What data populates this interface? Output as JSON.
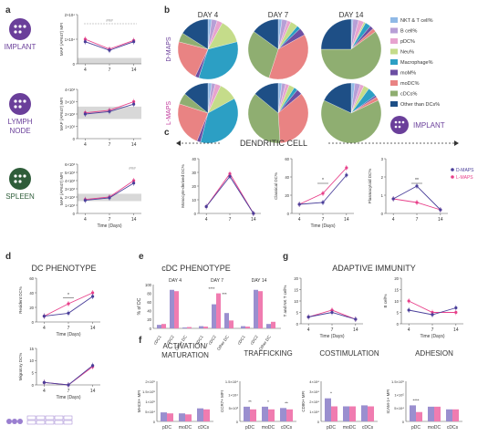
{
  "panels": {
    "a": "a",
    "b": "b",
    "c": "c",
    "d": "d",
    "e": "e",
    "f": "f",
    "g": "g"
  },
  "a": {
    "rows": [
      {
        "label_lines": [
          "IMPLANT"
        ],
        "ylabel": "MAP (AF647) MFI",
        "ticks": [
          "2×10⁴",
          "1×10⁴",
          "0"
        ],
        "color": "#5a3a8a"
      },
      {
        "label_lines": [
          "LYMPH",
          "NODE"
        ],
        "ylabel": "MAP (AF647) MFI",
        "ticks": [
          "4×10³",
          "3×10³",
          "2×10³",
          "1×10³",
          "0"
        ],
        "color": "#5a3a8a"
      },
      {
        "label_lines": [
          "SPLEEN"
        ],
        "ylabel": "MAP (AF647) MFI",
        "ticks": [
          "6×10³",
          "5×10³",
          "4×10³",
          "3×10³",
          "2×10³",
          "1×10³",
          "0"
        ],
        "color": "#1f4a2e"
      }
    ],
    "xticks": [
      "4",
      "7",
      "14"
    ],
    "xlabel": "Time (Days)",
    "sig": "###"
  },
  "b": {
    "days": [
      "DAY 4",
      "DAY 7",
      "DAY 14"
    ],
    "rows": [
      "D-MAPS",
      "L-MAPS"
    ],
    "legend": [
      {
        "label": "NKT & T cell%",
        "color": "#8fb9e6"
      },
      {
        "label": "B cell%",
        "color": "#b79fd6"
      },
      {
        "label": "pDC%",
        "color": "#e7a3cf"
      },
      {
        "label": "Neu%",
        "color": "#c5dc8a"
      },
      {
        "label": "Macrophage%",
        "color": "#2c9fc4"
      },
      {
        "label": "moM%",
        "color": "#6c4fa3"
      },
      {
        "label": "moDC%",
        "color": "#e98383"
      },
      {
        "label": "cDCs%",
        "color": "#8fae71"
      },
      {
        "label": "Other than DCs%",
        "color": "#1e4f86"
      }
    ],
    "pies": [
      [
        [
          2,
          3,
          3,
          13,
          34,
          2,
          22,
          5,
          16
        ],
        [
          2,
          3,
          2,
          4,
          2,
          4,
          38,
          30,
          15
        ],
        [
          1,
          3,
          3,
          1,
          3,
          2,
          2,
          60,
          25
        ]
      ],
      [
        [
          2,
          2,
          3,
          10,
          37,
          2,
          24,
          6,
          14
        ],
        [
          2,
          2,
          2,
          3,
          2,
          3,
          35,
          37,
          14
        ],
        [
          2,
          3,
          2,
          3,
          5,
          1,
          2,
          64,
          18
        ]
      ]
    ],
    "implant_label": "IMPLANT"
  },
  "c": {
    "title": "DENDRITIC CELL",
    "subplots": [
      {
        "ylabel": "Monocyte-derived DC%",
        "ticks": [
          "40",
          "30",
          "20",
          "10",
          "0"
        ],
        "ymax": 40,
        "xlabel": "",
        "sig": "",
        "dmaps": [
          5,
          27,
          0
        ],
        "lmaps": [
          5,
          29,
          0
        ]
      },
      {
        "ylabel": "Classical DC%",
        "ticks": [
          "60",
          "40",
          "20",
          "0"
        ],
        "ymax": 60,
        "xlabel": "Time (Days)",
        "sig": "*",
        "dmaps": [
          10,
          12,
          42
        ],
        "lmaps": [
          10,
          22,
          50
        ]
      },
      {
        "ylabel": "Plasmacytoid DC%",
        "ticks": [
          "3",
          "2",
          "1",
          "0"
        ],
        "ymax": 3,
        "xlabel": "",
        "sig": "**",
        "dmaps": [
          0.8,
          1.5,
          0.2
        ],
        "lmaps": [
          0.8,
          0.6,
          0.2
        ]
      }
    ],
    "legend": [
      "D-MAPS",
      "L-MAPS"
    ]
  },
  "d": {
    "title": "DC PHENOTYPE",
    "top": {
      "ylabel": "Resident DC%",
      "ticks": [
        "60",
        "40",
        "20",
        "0"
      ],
      "ymax": 60,
      "sig": "*",
      "xlabel": "Time (Days)",
      "dmaps": [
        8,
        12,
        35
      ],
      "lmaps": [
        8,
        25,
        40
      ]
    },
    "bottom": {
      "ylabel": "Migratory DC%",
      "ticks": [
        "15",
        "10",
        "5",
        "0"
      ],
      "ymax": 15,
      "xlabel": "Time (Days)",
      "dmaps": [
        1,
        0,
        8
      ],
      "lmaps": [
        1,
        0,
        7.5
      ]
    },
    "xticks": [
      "4",
      "7",
      "14"
    ]
  },
  "e": {
    "title": "cDC PHENOTYPE",
    "ylabel": "% of DC",
    "ticks": [
      "100",
      "80",
      "60",
      "40",
      "20",
      "0"
    ],
    "days": [
      "DAY 4",
      "DAY 7",
      "DAY 14"
    ],
    "cats": [
      "cDC1",
      "cDC2",
      "Other DC"
    ],
    "sig": [
      "****",
      "***"
    ],
    "dmaps": [
      [
        8,
        88,
        2
      ],
      [
        5,
        55,
        35
      ],
      [
        5,
        88,
        10
      ]
    ],
    "lmaps": [
      [
        10,
        85,
        3
      ],
      [
        4,
        80,
        18
      ],
      [
        4,
        85,
        15
      ]
    ]
  },
  "f": {
    "groups": [
      {
        "title_lines": [
          "ACTIVATION/",
          "MATURATION"
        ],
        "ylabel": "MHCII+ MFI",
        "ticks": [
          "2×10⁵",
          "1.5×10⁵",
          "1×10⁵",
          "5×10⁴",
          "0"
        ],
        "ymax": 2,
        "dmaps": [
          0.45,
          0.4,
          0.65
        ],
        "lmaps": [
          0.4,
          0.35,
          0.6
        ],
        "sig": [
          "",
          "",
          ""
        ]
      },
      {
        "title_lines": [
          "TRAFFICKING"
        ],
        "ylabel": "CCR7+ MFI",
        "ticks": [
          "1.5×10⁴",
          "1×10⁴",
          "5×10³",
          "0"
        ],
        "ymax": 1.5,
        "dmaps": [
          0.55,
          0.55,
          0.5
        ],
        "lmaps": [
          0.45,
          0.45,
          0.45
        ],
        "sig": [
          "**",
          "*",
          "**"
        ]
      },
      {
        "title_lines": [
          "COSTIMULATION"
        ],
        "ylabel": "CD80+ MFI",
        "ticks": [
          "4×10⁴",
          "3×10⁴",
          "2×10⁴",
          "1×10⁴",
          "0"
        ],
        "ymax": 4,
        "dmaps": [
          2.3,
          1.5,
          1.6
        ],
        "lmaps": [
          1.5,
          1.5,
          1.5
        ],
        "sig": [
          "*",
          "",
          ""
        ]
      },
      {
        "title_lines": [
          "ADHESION"
        ],
        "ylabel": "ICAM-1+ MFI",
        "ticks": [
          "1.5×10⁵",
          "1×10⁵",
          "5×10⁴",
          "0"
        ],
        "ymax": 1.5,
        "dmaps": [
          0.6,
          0.55,
          0.45
        ],
        "lmaps": [
          0.35,
          0.55,
          0.45
        ],
        "sig": [
          "****",
          "",
          ""
        ]
      }
    ],
    "cats": [
      "pDC",
      "moDC",
      "cDCs"
    ]
  },
  "g": {
    "title": "ADAPTIVE IMMUNITY",
    "left": {
      "ylabel": "T and NK T cell%",
      "ticks": [
        "20",
        "15",
        "10",
        "5",
        "0"
      ],
      "ymax": 20,
      "xlabel": "Time (Days)",
      "dmaps": [
        3,
        5,
        2
      ],
      "lmaps": [
        3,
        6,
        2
      ]
    },
    "right": {
      "ylabel": "B cell%",
      "ticks": [
        "20",
        "15",
        "10",
        "5",
        "0"
      ],
      "ymax": 20,
      "xlabel": "Time (Days)",
      "dmaps": [
        6,
        4,
        7
      ],
      "lmaps": [
        10,
        5,
        5
      ]
    },
    "xticks": [
      "4",
      "7",
      "14"
    ]
  },
  "colors": {
    "dmaps": "#4a3f9a",
    "lmaps": "#e8408a",
    "dmaps_bar": "#9a8fcf",
    "lmaps_bar": "#f07cb0",
    "axis": "#555555",
    "purple": "#6a3f9a",
    "green": "#2f5d3a",
    "blue": "#2a5aa0"
  }
}
